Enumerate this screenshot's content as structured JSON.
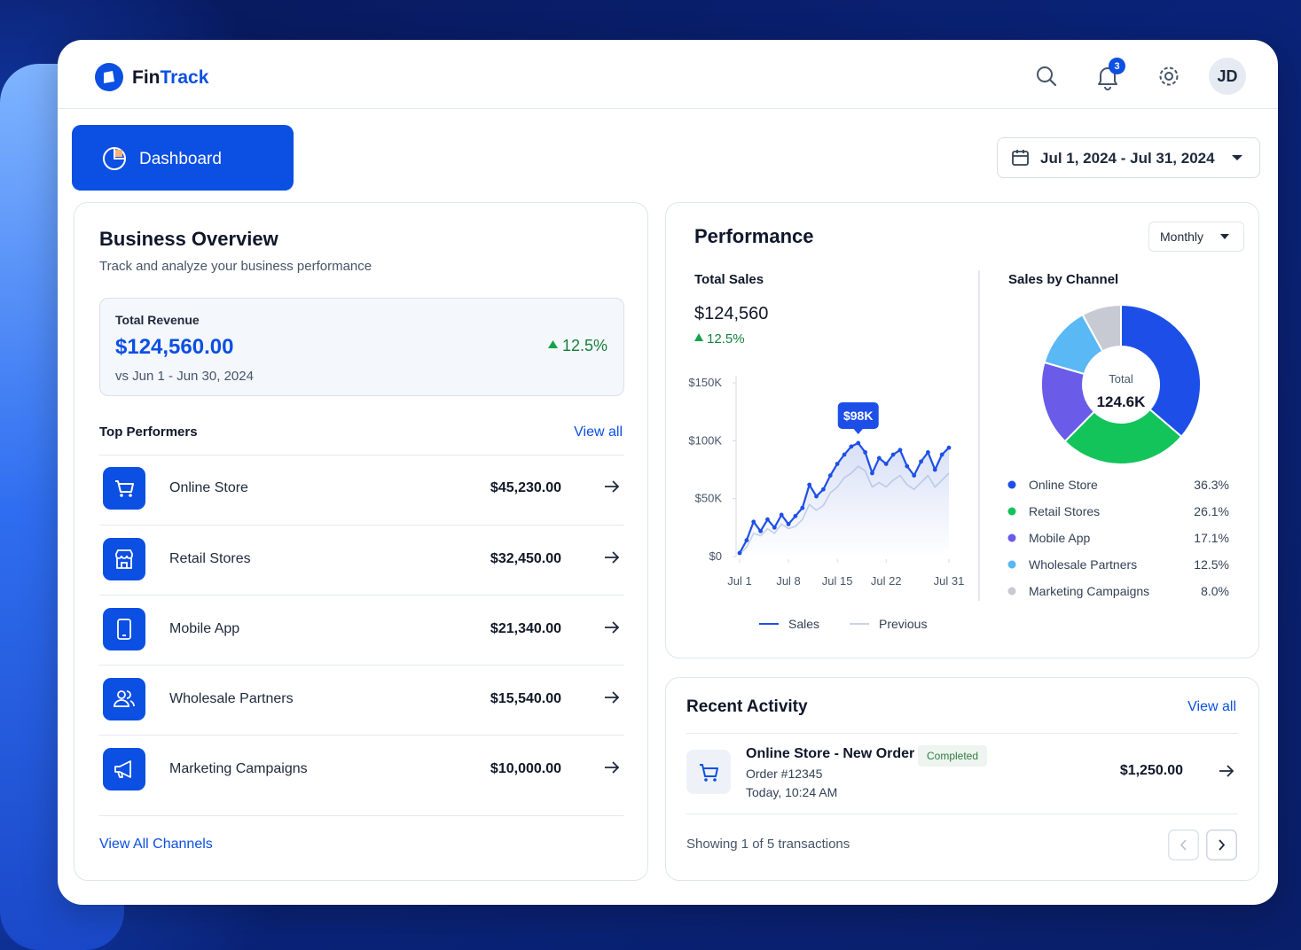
{
  "header": {
    "brand_prefix": "Fin",
    "brand_suffix": "Track",
    "notifications": 3,
    "avatar": "JD"
  },
  "nav": {
    "active": "Dashboard"
  },
  "date_range": "Jul 1, 2024 - Jul 31, 2024",
  "overview": {
    "title": "Business Overview",
    "subtitle": "Track and analyze your business performance",
    "revenue": {
      "label": "Total Revenue",
      "value": "$124,560.00",
      "change": "12.5%",
      "comparison": "vs Jun 1 - Jun 30, 2024"
    },
    "top_performers": {
      "title": "Top Performers",
      "view_all": "View all",
      "items": [
        {
          "name": "Online Store",
          "amount": "$45,230.00"
        },
        {
          "name": "Retail Stores",
          "amount": "$32,450.00"
        },
        {
          "name": "Mobile App",
          "amount": "$21,340.00"
        },
        {
          "name": "Wholesale Partners",
          "amount": "$15,540.00"
        },
        {
          "name": "Marketing Campaigns",
          "amount": "$10,000.00"
        }
      ],
      "footer_link": "View All Channels"
    }
  },
  "performance": {
    "title": "Performance",
    "period": "Monthly",
    "total_sales": {
      "label": "Total Sales",
      "value": "$124,560",
      "change": "12.5%"
    },
    "sales_chart": {
      "type": "line",
      "x": [
        1,
        2,
        3,
        4,
        5,
        6,
        7,
        8,
        9,
        10,
        11,
        12,
        13,
        14,
        15,
        16,
        17,
        18,
        19,
        20,
        21,
        22,
        23,
        24,
        25,
        26,
        27,
        28,
        29,
        30,
        31
      ],
      "xlim": [
        1,
        31
      ],
      "xticks": [
        {
          "value": 1,
          "label": "Jul 1"
        },
        {
          "value": 8,
          "label": "Jul 8"
        },
        {
          "value": 15,
          "label": "Jul 15"
        },
        {
          "value": 22,
          "label": "Jul 22"
        },
        {
          "value": 31,
          "label": "Jul 31"
        }
      ],
      "ylim": [
        0,
        150000
      ],
      "yticks": [
        {
          "value": 0,
          "label": "$0"
        },
        {
          "value": 50000,
          "label": "$50K"
        },
        {
          "value": 100000,
          "label": "$100K"
        },
        {
          "value": 150000,
          "label": "$150K"
        }
      ],
      "grid": false,
      "series": [
        {
          "name": "Sales",
          "color": "#1d4fe8",
          "values": [
            3000,
            14000,
            30000,
            22000,
            32000,
            25000,
            36000,
            28000,
            35000,
            42000,
            62000,
            52000,
            58000,
            70000,
            80000,
            88000,
            95000,
            98000,
            90000,
            72000,
            85000,
            80000,
            88000,
            92000,
            78000,
            70000,
            82000,
            90000,
            75000,
            88000,
            94000
          ],
          "value_labels": [
            null,
            null,
            null,
            null,
            null,
            null,
            null,
            null,
            null,
            null,
            null,
            null,
            null,
            null,
            null,
            null,
            null,
            "$98K",
            null,
            null,
            null,
            null,
            null,
            null,
            null,
            null,
            null,
            null,
            null,
            null,
            null
          ]
        },
        {
          "name": "Previous",
          "color": "#c9d3ea",
          "values": [
            2000,
            8000,
            20000,
            18000,
            24000,
            20000,
            28000,
            24000,
            26000,
            32000,
            45000,
            40000,
            44000,
            55000,
            60000,
            68000,
            72000,
            78000,
            74000,
            60000,
            64000,
            60000,
            66000,
            70000,
            62000,
            58000,
            64000,
            70000,
            60000,
            66000,
            72000
          ]
        }
      ]
    },
    "channels_chart": {
      "type": "donut",
      "title": "Sales by Channel",
      "center_label": "Total",
      "center_value": "124.6K",
      "categories": [
        "Online Store",
        "Retail Stores",
        "Mobile App",
        "Wholesale Partners",
        "Marketing Campaigns"
      ],
      "values": [
        36.3,
        26.1,
        17.1,
        12.5,
        8.0
      ],
      "value_labels": [
        "36.3%",
        "26.1%",
        "17.1%",
        "12.5%",
        "8.0%"
      ],
      "colors": [
        "#1d4fe8",
        "#12c45a",
        "#6a5be8",
        "#5ab8f5",
        "#c7cad3"
      ]
    }
  },
  "recent_activity": {
    "title": "Recent Activity",
    "view_all": "View all",
    "item": {
      "title": "Online Store - New Order",
      "status": "Completed",
      "order": "Order #12345",
      "time": "Today, 10:24 AM",
      "amount": "$1,250.00"
    },
    "footer": "Showing 1 of 5 transactions"
  }
}
